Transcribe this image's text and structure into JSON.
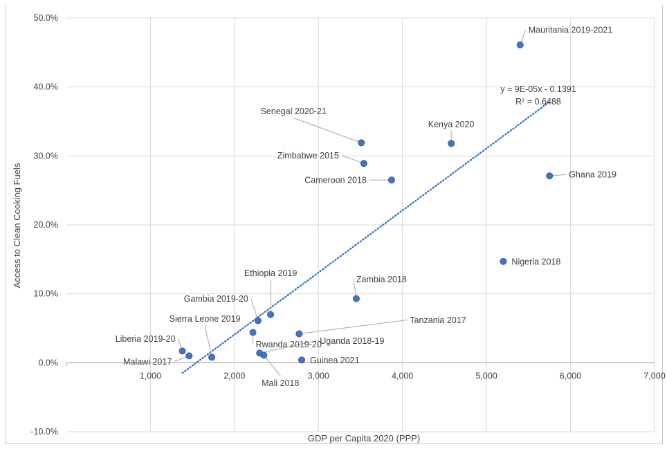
{
  "chart_data": {
    "type": "scatter",
    "title": "",
    "xlabel": "GDP per Capita 2020 (PPP)",
    "ylabel": "Access to Clean Cooking Fuels",
    "xlim": [
      0,
      7000
    ],
    "ylim": [
      -0.1,
      0.5
    ],
    "x_ticks": [
      1000,
      2000,
      3000,
      4000,
      5000,
      6000,
      7000
    ],
    "x_tick_labels": [
      "1,000",
      "2,000",
      "3,000",
      "4,000",
      "5,000",
      "6,000",
      "7,000"
    ],
    "y_ticks": [
      -0.1,
      0.0,
      0.1,
      0.2,
      0.3,
      0.4,
      0.5
    ],
    "y_tick_labels": [
      "-10.0%",
      "0.0%",
      "10.0%",
      "20.0%",
      "30.0%",
      "40.0%",
      "50.0%"
    ],
    "grid": true,
    "marker_color": "#4472c4",
    "trendline_color": "#2f6fc4",
    "points": [
      {
        "label": "Mauritania 2019-2021",
        "x": 5400,
        "y": 0.461
      },
      {
        "label": "Senegal 2020-21",
        "x": 3510,
        "y": 0.319
      },
      {
        "label": "Kenya 2020",
        "x": 4580,
        "y": 0.318
      },
      {
        "label": "Zimbabwe 2015",
        "x": 3540,
        "y": 0.289
      },
      {
        "label": "Ghana 2019",
        "x": 5750,
        "y": 0.271
      },
      {
        "label": "Cameroon 2018",
        "x": 3870,
        "y": 0.265
      },
      {
        "label": "Nigeria 2018",
        "x": 5200,
        "y": 0.147
      },
      {
        "label": "Zambia 2018",
        "x": 3450,
        "y": 0.093
      },
      {
        "label": "Ethiopia 2019",
        "x": 2430,
        "y": 0.07
      },
      {
        "label": "Gambia 2019-20",
        "x": 2280,
        "y": 0.061
      },
      {
        "label": "Rwanda 2019-20",
        "x": 2220,
        "y": 0.044
      },
      {
        "label": "Tanzania 2017",
        "x": 2770,
        "y": 0.042
      },
      {
        "label": "Liberia 2019-20",
        "x": 1380,
        "y": 0.017
      },
      {
        "label": "Uganda 2018-19",
        "x": 2300,
        "y": 0.014
      },
      {
        "label": "Mali 2018",
        "x": 2350,
        "y": 0.011
      },
      {
        "label": "Malawi 2017",
        "x": 1460,
        "y": 0.01
      },
      {
        "label": "Sierra Leone 2019",
        "x": 1730,
        "y": 0.008
      },
      {
        "label": "Guinea 2021",
        "x": 2800,
        "y": 0.004
      }
    ],
    "trendline": {
      "x": [
        1380,
        5750
      ],
      "equation": "y = 9E-05x - 0.1391",
      "r_squared": "R² = 0.6488"
    }
  }
}
